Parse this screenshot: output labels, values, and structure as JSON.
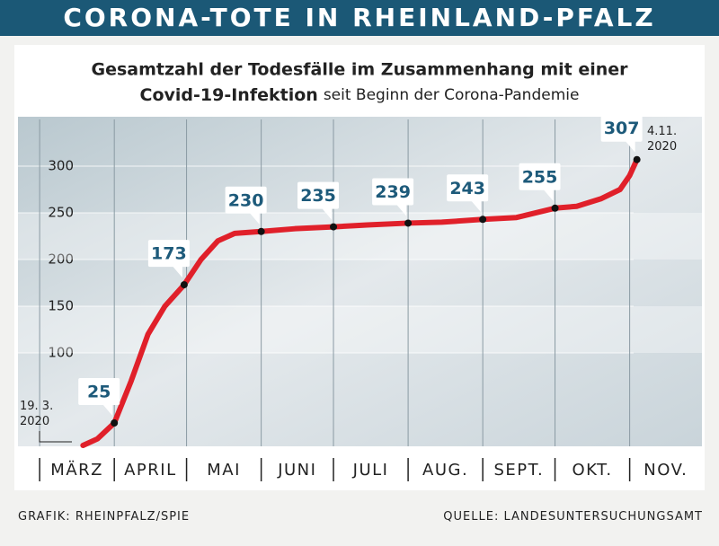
{
  "header": {
    "title": "CORONA-TOTE IN RHEINLAND-PFALZ"
  },
  "chart_data": {
    "type": "line",
    "subtitle": [
      "Gesamtzahl der Todesfälle im Zusammenhang mit einer",
      "Covid-19-Infektion",
      "seit Beginn der Corona-Pandemie"
    ],
    "x": [
      "2020-03-19",
      "2020-03-25",
      "2020-04-01",
      "2020-04-08",
      "2020-04-15",
      "2020-04-22",
      "2020-04-30",
      "2020-05-07",
      "2020-05-14",
      "2020-05-21",
      "2020-06-01",
      "2020-06-15",
      "2020-07-01",
      "2020-07-15",
      "2020-08-01",
      "2020-08-15",
      "2020-09-01",
      "2020-09-15",
      "2020-10-01",
      "2020-10-10",
      "2020-10-20",
      "2020-10-28",
      "2020-11-01",
      "2020-11-04"
    ],
    "values": [
      1,
      8,
      25,
      70,
      120,
      150,
      173,
      200,
      220,
      228,
      230,
      233,
      235,
      237,
      239,
      240,
      243,
      245,
      255,
      257,
      265,
      275,
      290,
      307
    ],
    "color": "#e0202a",
    "highlights": {
      "x": [
        "2020-04-01",
        "2020-04-30",
        "2020-06-01",
        "2020-07-01",
        "2020-08-01",
        "2020-09-01",
        "2020-10-01",
        "2020-11-04"
      ],
      "values": [
        25,
        173,
        230,
        235,
        239,
        243,
        255,
        307
      ]
    },
    "annotations": [
      [
        "19. 3.",
        "2020"
      ],
      [
        "4.11.",
        "2020"
      ]
    ],
    "xlim": [
      "2020-02-21",
      "2020-12-01"
    ],
    "xticks": [
      {
        "value": "2020-03-01",
        "label": "MÄRZ"
      },
      {
        "value": "2020-04-01",
        "label": "APRIL"
      },
      {
        "value": "2020-05-01",
        "label": "MAI"
      },
      {
        "value": "2020-06-01",
        "label": "JUNI"
      },
      {
        "value": "2020-07-01",
        "label": "JULI"
      },
      {
        "value": "2020-08-01",
        "label": "AUG."
      },
      {
        "value": "2020-09-01",
        "label": "SEPT."
      },
      {
        "value": "2020-10-01",
        "label": "OKT."
      },
      {
        "value": "2020-11-01",
        "label": "NOV."
      }
    ],
    "ylim": [
      0,
      350
    ],
    "yticks": [
      100,
      150,
      200,
      250,
      300
    ],
    "grid": true
  },
  "footer": {
    "left": "GRAFIK: RHEINPFALZ/SPIE",
    "right": "QUELLE: LANDESUNTERSUCHUNGSAMT"
  }
}
